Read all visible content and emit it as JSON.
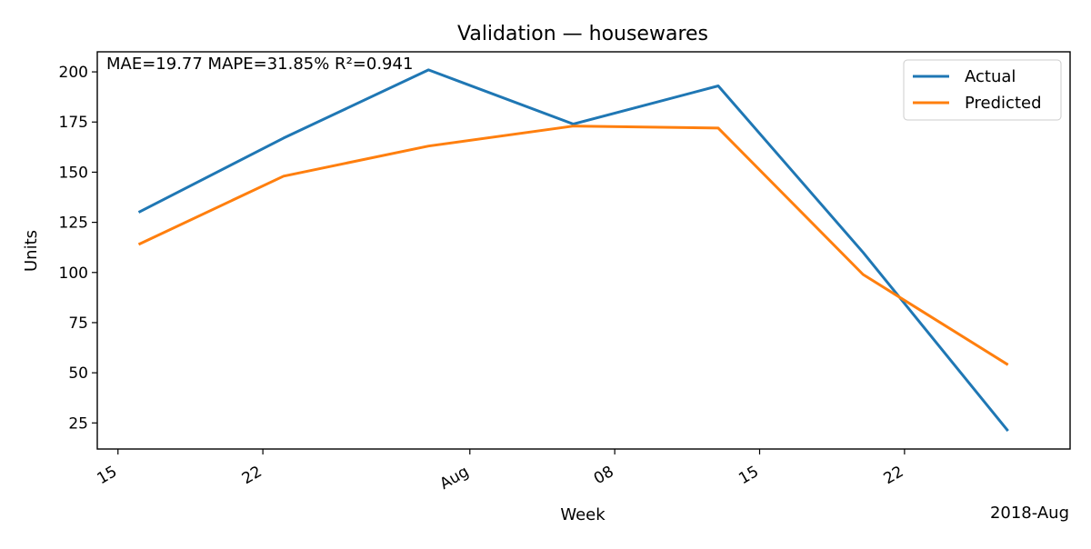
{
  "chart_data": {
    "type": "line",
    "title": "Validation — housewares",
    "xlabel": "Week",
    "ylabel": "Units",
    "x_offset_label": "2018-Aug",
    "annotation": "MAE=19.77  MAPE=31.85%  R²=0.941",
    "x": [
      "2018-07-16",
      "2018-07-23",
      "2018-07-30",
      "2018-08-06",
      "2018-08-13",
      "2018-08-20",
      "2018-08-27"
    ],
    "x_ticks": [
      {
        "date": "2018-07-15",
        "label": "15"
      },
      {
        "date": "2018-07-22",
        "label": "22"
      },
      {
        "date": "2018-08-01",
        "label": "Aug"
      },
      {
        "date": "2018-08-08",
        "label": "08"
      },
      {
        "date": "2018-08-15",
        "label": "15"
      },
      {
        "date": "2018-08-22",
        "label": "22"
      }
    ],
    "xlim": [
      "2018-07-14",
      "2018-08-30"
    ],
    "ylim": [
      12,
      210
    ],
    "y_ticks": [
      25,
      50,
      75,
      100,
      125,
      150,
      175,
      200
    ],
    "grid": false,
    "legend_position": "top-right",
    "series": [
      {
        "name": "Actual",
        "color": "#1f77b4",
        "values": [
          130,
          167,
          201,
          174,
          193,
          110,
          21
        ]
      },
      {
        "name": "Predicted",
        "color": "#ff7f0e",
        "values": [
          114,
          148,
          163,
          173,
          172,
          99,
          54
        ]
      }
    ]
  }
}
